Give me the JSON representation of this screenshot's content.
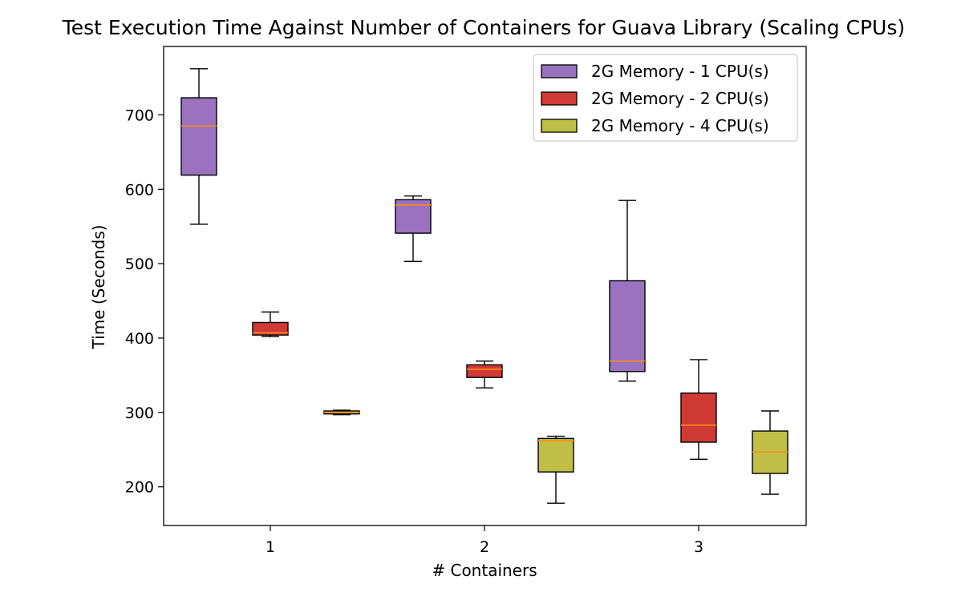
{
  "chart_data": {
    "type": "box",
    "title": "Test Execution Time Against Number of Containers for Guava Library (Scaling CPUs)",
    "xlabel": "# Containers",
    "ylabel": "Time (Seconds)",
    "categories": [
      "1",
      "2",
      "3"
    ],
    "yticks": [
      200,
      300,
      400,
      500,
      600,
      700
    ],
    "ylim": [
      148,
      792
    ],
    "legend_position": "upper-right",
    "grid": false,
    "median_color": "#ff8c1a",
    "series": [
      {
        "name": "2G Memory - 1 CPU(s)",
        "color": "#9a72c0",
        "boxes": [
          {
            "category": "1",
            "whisker_low": 553,
            "q1": 619,
            "median": 685,
            "q3": 723,
            "whisker_high": 762
          },
          {
            "category": "2",
            "whisker_low": 503,
            "q1": 541,
            "median": 579,
            "q3": 586,
            "whisker_high": 591
          },
          {
            "category": "3",
            "whisker_low": 342,
            "q1": 355,
            "median": 369,
            "q3": 477,
            "whisker_high": 585
          }
        ]
      },
      {
        "name": "2G Memory - 2 CPU(s)",
        "color": "#cf3a34",
        "boxes": [
          {
            "category": "1",
            "whisker_low": 402,
            "q1": 404,
            "median": 407,
            "q3": 421,
            "whisker_high": 435
          },
          {
            "category": "2",
            "whisker_low": 333,
            "q1": 347,
            "median": 358,
            "q3": 364,
            "whisker_high": 369
          },
          {
            "category": "3",
            "whisker_low": 237,
            "q1": 260,
            "median": 283,
            "q3": 326,
            "whisker_high": 371
          }
        ]
      },
      {
        "name": "2G Memory - 4 CPU(s)",
        "color": "#bfbf47",
        "boxes": [
          {
            "category": "1",
            "whisker_low": 297,
            "q1": 298,
            "median": 300,
            "q3": 302,
            "whisker_high": 303
          },
          {
            "category": "2",
            "whisker_low": 178,
            "q1": 220,
            "median": 262,
            "q3": 265,
            "whisker_high": 268
          },
          {
            "category": "3",
            "whisker_low": 190,
            "q1": 218,
            "median": 247,
            "q3": 275,
            "whisker_high": 302
          }
        ]
      }
    ]
  }
}
